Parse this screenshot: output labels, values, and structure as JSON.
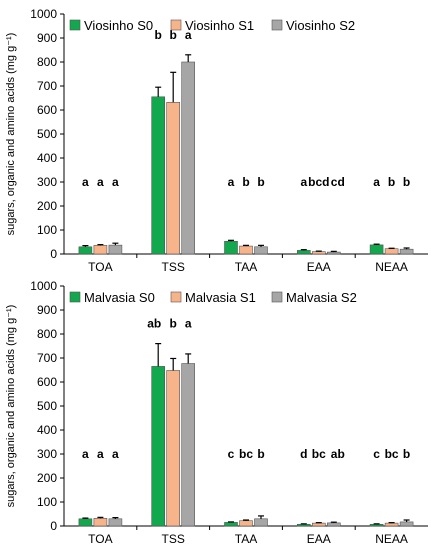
{
  "chart_data": [
    {
      "type": "bar",
      "ylabel": "sugars, organic and amino acids (mg g⁻¹)",
      "ylim": [
        0,
        1000
      ],
      "yticks": [
        0,
        100,
        200,
        300,
        400,
        500,
        600,
        700,
        800,
        900,
        1000
      ],
      "categories": [
        "TOA",
        "TSS",
        "TAA",
        "EAA",
        "NEAA"
      ],
      "legend": "top-left",
      "grid": false,
      "series": [
        {
          "name": "Viosinho S0",
          "color": "#11a84e",
          "values": [
            30,
            655,
            53,
            15,
            38
          ],
          "errors": [
            5,
            40,
            4,
            3,
            3
          ]
        },
        {
          "name": "Viosinho S1",
          "color": "#f7b38a",
          "values": [
            36,
            632,
            33,
            10,
            22
          ],
          "errors": [
            3,
            125,
            3,
            2,
            2
          ]
        },
        {
          "name": "Viosinho S2",
          "color": "#a6a6a6",
          "values": [
            37,
            800,
            30,
            8,
            20
          ],
          "errors": [
            8,
            30,
            6,
            3,
            5
          ]
        }
      ],
      "significance": [
        {
          "category": "TOA",
          "labels": [
            "a",
            "a",
            "a"
          ]
        },
        {
          "category": "TSS",
          "labels": [
            "b",
            "b",
            "a"
          ]
        },
        {
          "category": "TAA",
          "labels": [
            "a",
            "b",
            "b"
          ]
        },
        {
          "category": "EAA",
          "labels": [
            "a",
            "bcd",
            "cd"
          ]
        },
        {
          "category": "NEAA",
          "labels": [
            "a",
            "b",
            "b"
          ]
        }
      ]
    },
    {
      "type": "bar",
      "ylabel": "sugars, organic and amino acids (mg g⁻¹)",
      "ylim": [
        0,
        1000
      ],
      "yticks": [
        0,
        100,
        200,
        300,
        400,
        500,
        600,
        700,
        800,
        900,
        1000
      ],
      "categories": [
        "TOA",
        "TSS",
        "TAA",
        "EAA",
        "NEAA"
      ],
      "legend": "top-left",
      "grid": false,
      "series": [
        {
          "name": "Malvasia S0",
          "color": "#11a84e",
          "values": [
            30,
            665,
            15,
            7,
            7
          ],
          "errors": [
            3,
            95,
            2,
            2,
            2
          ]
        },
        {
          "name": "Malvasia S1",
          "color": "#f7b38a",
          "values": [
            32,
            648,
            22,
            12,
            12
          ],
          "errors": [
            4,
            50,
            3,
            2,
            2
          ]
        },
        {
          "name": "Malvasia S2",
          "color": "#a6a6a6",
          "values": [
            30,
            677,
            30,
            13,
            17
          ],
          "errors": [
            5,
            40,
            12,
            3,
            8
          ]
        }
      ],
      "significance": [
        {
          "category": "TOA",
          "labels": [
            "a",
            "a",
            "a"
          ]
        },
        {
          "category": "TSS",
          "labels": [
            "ab",
            "b",
            "a"
          ]
        },
        {
          "category": "TAA",
          "labels": [
            "c",
            "bc",
            "b"
          ]
        },
        {
          "category": "EAA",
          "labels": [
            "d",
            "bc",
            "ab"
          ]
        },
        {
          "category": "NEAA",
          "labels": [
            "c",
            "bc",
            "b"
          ]
        }
      ]
    }
  ]
}
